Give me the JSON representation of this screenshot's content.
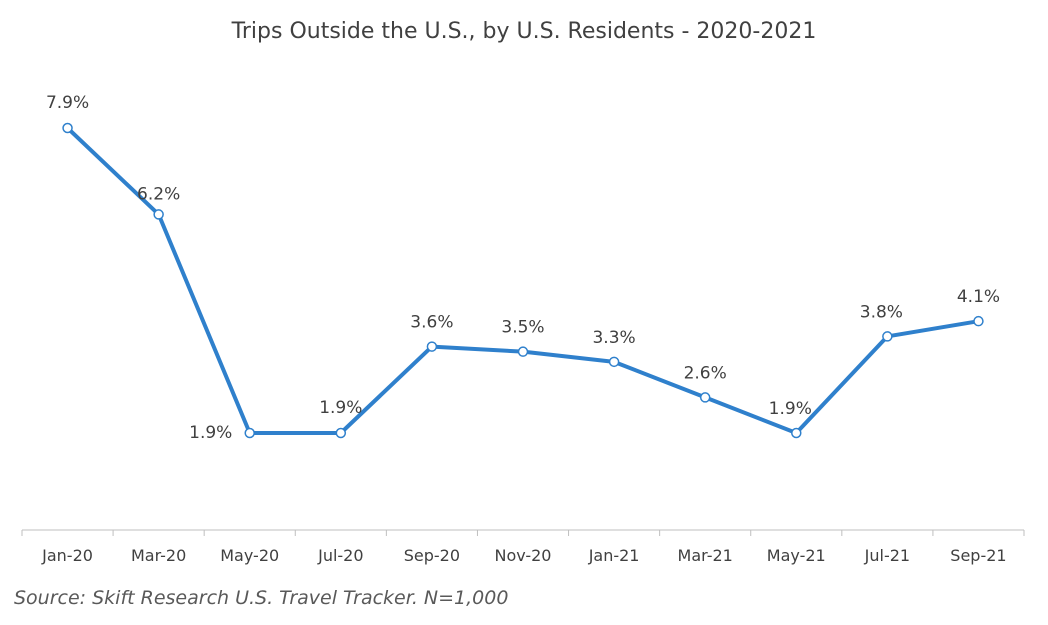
{
  "chart_data": {
    "type": "line",
    "title": "Trips Outside the U.S., by U.S. Residents - 2020-2021",
    "categories": [
      "Jan-20",
      "Mar-20",
      "May-20",
      "Jul-20",
      "Sep-20",
      "Nov-20",
      "Jan-21",
      "Mar-21",
      "May-21",
      "Jul-21",
      "Sep-21"
    ],
    "series": [
      {
        "name": "Trips Outside the U.S.",
        "values": [
          7.9,
          6.2,
          1.9,
          1.9,
          3.6,
          3.5,
          3.3,
          2.6,
          1.9,
          3.8,
          4.1
        ],
        "labels": [
          "7.9%",
          "6.2%",
          "1.9%",
          "1.9%",
          "3.6%",
          "3.5%",
          "3.3%",
          "2.6%",
          "1.9%",
          "3.8%",
          "4.1%"
        ],
        "color": "#2F80CC"
      }
    ],
    "ylim": [
      0,
      8
    ],
    "xlabel": "",
    "ylabel": "",
    "grid": false,
    "legend": "none",
    "axis_color": "#BFBFBF",
    "text_color": "#404040"
  },
  "source": {
    "text": "Source: Skift Research U.S. Travel Tracker. N=1,000"
  }
}
